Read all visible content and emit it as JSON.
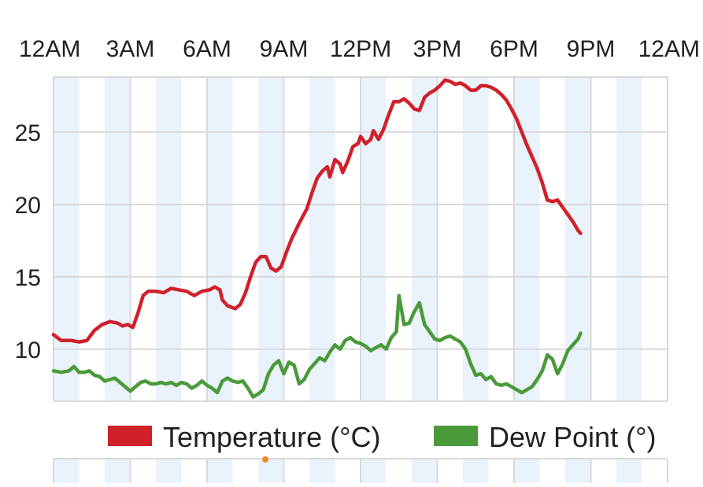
{
  "colors": {
    "temperature": "#d0202a",
    "dew_point": "#4a9a3a",
    "band": "#eaf2fb",
    "grid": "#d9d9d9"
  },
  "legend": {
    "temperature": "Temperature (°C)",
    "dew_point": "Dew Point (°)"
  },
  "chart_data": {
    "type": "line",
    "title": "",
    "xlabel": "",
    "ylabel": "",
    "x_ticks": [
      "12AM",
      "3AM",
      "6AM",
      "9AM",
      "12PM",
      "3PM",
      "6PM",
      "9PM",
      "12AM"
    ],
    "x_range_hours": [
      0,
      24
    ],
    "y_ticks": [
      10,
      15,
      20,
      25
    ],
    "ylim": [
      6.4,
      28.8
    ],
    "grid": true,
    "legend_position": "bottom",
    "series": [
      {
        "name": "Temperature (°C)",
        "points": [
          [
            0.0,
            11.0
          ],
          [
            0.3,
            10.6
          ],
          [
            0.7,
            10.6
          ],
          [
            1.0,
            10.5
          ],
          [
            1.3,
            10.6
          ],
          [
            1.6,
            11.3
          ],
          [
            1.9,
            11.7
          ],
          [
            2.2,
            11.9
          ],
          [
            2.5,
            11.8
          ],
          [
            2.7,
            11.6
          ],
          [
            2.9,
            11.7
          ],
          [
            3.1,
            11.5
          ],
          [
            3.3,
            12.5
          ],
          [
            3.5,
            13.7
          ],
          [
            3.7,
            14.0
          ],
          [
            4.0,
            14.0
          ],
          [
            4.3,
            13.9
          ],
          [
            4.6,
            14.2
          ],
          [
            4.9,
            14.1
          ],
          [
            5.2,
            14.0
          ],
          [
            5.5,
            13.7
          ],
          [
            5.8,
            14.0
          ],
          [
            6.1,
            14.1
          ],
          [
            6.3,
            14.3
          ],
          [
            6.5,
            14.1
          ],
          [
            6.6,
            13.4
          ],
          [
            6.8,
            13.0
          ],
          [
            7.1,
            12.8
          ],
          [
            7.3,
            13.1
          ],
          [
            7.5,
            13.9
          ],
          [
            7.7,
            15.0
          ],
          [
            7.9,
            16.0
          ],
          [
            8.1,
            16.4
          ],
          [
            8.3,
            16.4
          ],
          [
            8.5,
            15.6
          ],
          [
            8.7,
            15.4
          ],
          [
            8.9,
            15.7
          ],
          [
            9.1,
            16.7
          ],
          [
            9.3,
            17.6
          ],
          [
            9.6,
            18.7
          ],
          [
            9.9,
            19.7
          ],
          [
            10.1,
            20.8
          ],
          [
            10.3,
            21.8
          ],
          [
            10.5,
            22.3
          ],
          [
            10.7,
            22.6
          ],
          [
            10.8,
            21.9
          ],
          [
            11.0,
            23.1
          ],
          [
            11.2,
            22.8
          ],
          [
            11.3,
            22.2
          ],
          [
            11.5,
            23.0
          ],
          [
            11.7,
            24.0
          ],
          [
            11.9,
            24.2
          ],
          [
            12.0,
            24.7
          ],
          [
            12.2,
            24.2
          ],
          [
            12.4,
            24.5
          ],
          [
            12.5,
            25.1
          ],
          [
            12.7,
            24.5
          ],
          [
            12.9,
            25.2
          ],
          [
            13.1,
            26.2
          ],
          [
            13.3,
            27.1
          ],
          [
            13.5,
            27.1
          ],
          [
            13.7,
            27.3
          ],
          [
            13.9,
            27.0
          ],
          [
            14.1,
            26.6
          ],
          [
            14.3,
            26.5
          ],
          [
            14.5,
            27.4
          ],
          [
            14.7,
            27.7
          ],
          [
            14.9,
            27.9
          ],
          [
            15.1,
            28.2
          ],
          [
            15.3,
            28.6
          ],
          [
            15.5,
            28.5
          ],
          [
            15.7,
            28.3
          ],
          [
            15.9,
            28.4
          ],
          [
            16.1,
            28.2
          ],
          [
            16.3,
            27.9
          ],
          [
            16.5,
            27.9
          ],
          [
            16.7,
            28.2
          ],
          [
            16.9,
            28.2
          ],
          [
            17.1,
            28.1
          ],
          [
            17.3,
            27.9
          ],
          [
            17.5,
            27.6
          ],
          [
            17.7,
            27.2
          ],
          [
            17.9,
            26.6
          ],
          [
            18.1,
            25.9
          ],
          [
            18.3,
            25.0
          ],
          [
            18.5,
            24.1
          ],
          [
            18.7,
            23.3
          ],
          [
            18.9,
            22.5
          ],
          [
            19.1,
            21.5
          ],
          [
            19.3,
            20.3
          ],
          [
            19.5,
            20.2
          ],
          [
            19.7,
            20.3
          ],
          [
            19.9,
            19.8
          ],
          [
            20.1,
            19.3
          ],
          [
            20.3,
            18.8
          ],
          [
            20.5,
            18.2
          ],
          [
            20.6,
            18.0
          ]
        ]
      },
      {
        "name": "Dew Point (°)",
        "points": [
          [
            0.0,
            8.5
          ],
          [
            0.3,
            8.4
          ],
          [
            0.6,
            8.5
          ],
          [
            0.8,
            8.8
          ],
          [
            1.0,
            8.4
          ],
          [
            1.2,
            8.4
          ],
          [
            1.4,
            8.5
          ],
          [
            1.6,
            8.2
          ],
          [
            1.8,
            8.1
          ],
          [
            2.0,
            7.8
          ],
          [
            2.2,
            7.9
          ],
          [
            2.4,
            8.0
          ],
          [
            2.6,
            7.7
          ],
          [
            2.8,
            7.4
          ],
          [
            3.0,
            7.1
          ],
          [
            3.2,
            7.4
          ],
          [
            3.4,
            7.7
          ],
          [
            3.6,
            7.8
          ],
          [
            3.8,
            7.6
          ],
          [
            4.0,
            7.6
          ],
          [
            4.2,
            7.7
          ],
          [
            4.4,
            7.6
          ],
          [
            4.6,
            7.7
          ],
          [
            4.8,
            7.5
          ],
          [
            5.0,
            7.7
          ],
          [
            5.2,
            7.6
          ],
          [
            5.4,
            7.3
          ],
          [
            5.6,
            7.5
          ],
          [
            5.8,
            7.8
          ],
          [
            6.0,
            7.5
          ],
          [
            6.2,
            7.3
          ],
          [
            6.4,
            7.0
          ],
          [
            6.6,
            7.8
          ],
          [
            6.8,
            8.0
          ],
          [
            7.0,
            7.8
          ],
          [
            7.2,
            7.7
          ],
          [
            7.4,
            7.8
          ],
          [
            7.6,
            7.3
          ],
          [
            7.8,
            6.7
          ],
          [
            8.0,
            6.9
          ],
          [
            8.2,
            7.2
          ],
          [
            8.4,
            8.3
          ],
          [
            8.6,
            8.9
          ],
          [
            8.8,
            9.2
          ],
          [
            9.0,
            8.3
          ],
          [
            9.2,
            9.1
          ],
          [
            9.4,
            8.9
          ],
          [
            9.6,
            7.6
          ],
          [
            9.8,
            7.9
          ],
          [
            10.0,
            8.6
          ],
          [
            10.2,
            9.0
          ],
          [
            10.4,
            9.4
          ],
          [
            10.6,
            9.2
          ],
          [
            10.8,
            9.8
          ],
          [
            11.0,
            10.3
          ],
          [
            11.2,
            10.0
          ],
          [
            11.4,
            10.6
          ],
          [
            11.6,
            10.8
          ],
          [
            11.8,
            10.5
          ],
          [
            12.0,
            10.4
          ],
          [
            12.2,
            10.2
          ],
          [
            12.4,
            9.9
          ],
          [
            12.6,
            10.1
          ],
          [
            12.8,
            10.3
          ],
          [
            13.0,
            10.0
          ],
          [
            13.2,
            10.8
          ],
          [
            13.4,
            11.2
          ],
          [
            13.5,
            13.7
          ],
          [
            13.7,
            11.7
          ],
          [
            13.9,
            11.8
          ],
          [
            14.1,
            12.6
          ],
          [
            14.3,
            13.2
          ],
          [
            14.5,
            11.7
          ],
          [
            14.7,
            11.2
          ],
          [
            14.9,
            10.7
          ],
          [
            15.1,
            10.6
          ],
          [
            15.3,
            10.8
          ],
          [
            15.5,
            10.9
          ],
          [
            15.7,
            10.7
          ],
          [
            15.9,
            10.5
          ],
          [
            16.1,
            10.0
          ],
          [
            16.3,
            9.0
          ],
          [
            16.5,
            8.2
          ],
          [
            16.7,
            8.3
          ],
          [
            16.9,
            7.9
          ],
          [
            17.1,
            8.1
          ],
          [
            17.3,
            7.6
          ],
          [
            17.5,
            7.5
          ],
          [
            17.7,
            7.6
          ],
          [
            17.9,
            7.4
          ],
          [
            18.1,
            7.2
          ],
          [
            18.3,
            7.0
          ],
          [
            18.5,
            7.2
          ],
          [
            18.7,
            7.4
          ],
          [
            18.9,
            7.9
          ],
          [
            19.1,
            8.5
          ],
          [
            19.3,
            9.6
          ],
          [
            19.5,
            9.3
          ],
          [
            19.7,
            8.3
          ],
          [
            19.9,
            9.0
          ],
          [
            20.1,
            9.9
          ],
          [
            20.3,
            10.3
          ],
          [
            20.5,
            10.7
          ],
          [
            20.6,
            11.1
          ]
        ]
      }
    ]
  }
}
